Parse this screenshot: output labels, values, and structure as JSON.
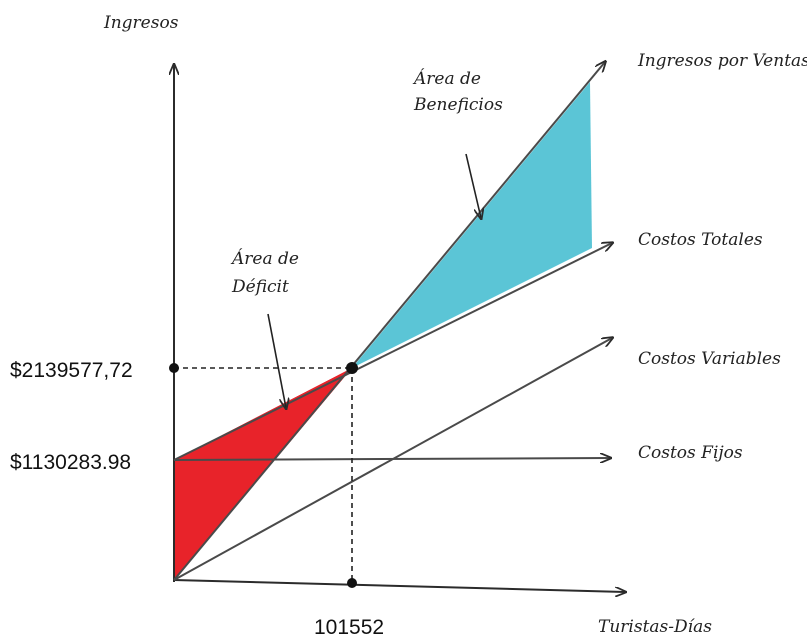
{
  "chart_data": {
    "type": "break-even diagram",
    "ylabel": "Ingresos",
    "xlabel": "Turistas-Días",
    "break_even": {
      "x_label": "101552",
      "y_label": "$2139577,72"
    },
    "fixed_cost_label": "$1130283.98",
    "lines": {
      "revenue": "Ingresos por Ventas",
      "total_costs": "Costos Totales",
      "variable_costs": "Costos Variables",
      "fixed_costs": "Costos Fijos"
    },
    "areas": {
      "profit": {
        "line1": "Área de",
        "line2": "Beneficios"
      },
      "deficit": {
        "line1": "Área de",
        "line2": "Déficit"
      }
    },
    "colors": {
      "profit": "#5bc5d6",
      "deficit": "#e8232a",
      "lines": "#4a4a4a",
      "axes": "#2b2b2b"
    }
  }
}
